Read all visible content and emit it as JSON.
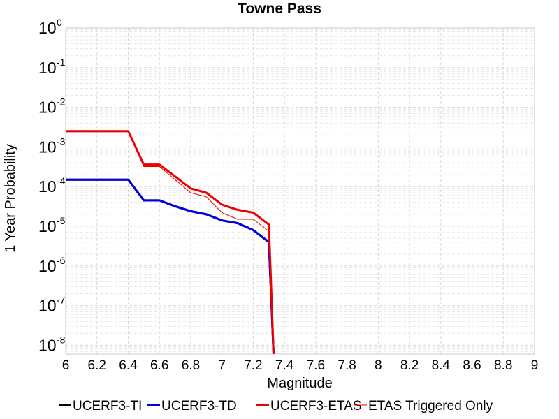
{
  "chart_data": {
    "type": "line",
    "title": "Towne Pass",
    "xlabel": "Magnitude",
    "ylabel": "1 Year Probability",
    "xlim": [
      6,
      9
    ],
    "ylim": [
      6e-09,
      1
    ],
    "yscale": "log",
    "grid": true,
    "legend_placement": "bottom",
    "x_ticks": [
      "6",
      "6.2",
      "6.4",
      "6.6",
      "6.8",
      "7",
      "7.2",
      "7.4",
      "7.6",
      "7.8",
      "8",
      "8.2",
      "8.4",
      "8.6",
      "8.8",
      "9"
    ],
    "y_ticks": [
      {
        "base": "10",
        "exp": "0",
        "value": 1
      },
      {
        "base": "10",
        "exp": "-1",
        "value": 0.1
      },
      {
        "base": "10",
        "exp": "-2",
        "value": 0.01
      },
      {
        "base": "10",
        "exp": "-3",
        "value": 0.001
      },
      {
        "base": "10",
        "exp": "-4",
        "value": 0.0001
      },
      {
        "base": "10",
        "exp": "-5",
        "value": 1e-05
      },
      {
        "base": "10",
        "exp": "-6",
        "value": 1e-06
      },
      {
        "base": "10",
        "exp": "-7",
        "value": 1e-07
      },
      {
        "base": "10",
        "exp": "-8",
        "value": 1e-08
      }
    ],
    "series": [
      {
        "name": "UCERF3-TI",
        "color": "#000000",
        "width": 3,
        "x": [
          6.0,
          6.4,
          6.5,
          6.6,
          6.7,
          6.8,
          6.9,
          7.0,
          7.1,
          7.2,
          7.3,
          7.33
        ],
        "y": [
          0.00015,
          0.00015,
          4.5e-05,
          4.5e-05,
          3.2e-05,
          2.4e-05,
          2e-05,
          1.4e-05,
          1.2e-05,
          8e-06,
          4e-06,
          6e-09
        ]
      },
      {
        "name": "UCERF3-TD",
        "color": "#0000dd",
        "width": 3,
        "x": [
          6.0,
          6.4,
          6.5,
          6.6,
          6.7,
          6.8,
          6.9,
          7.0,
          7.1,
          7.2,
          7.3,
          7.33
        ],
        "y": [
          0.00015,
          0.00015,
          4.5e-05,
          4.5e-05,
          3.2e-05,
          2.4e-05,
          2e-05,
          1.4e-05,
          1.2e-05,
          8e-06,
          4e-06,
          6e-09
        ]
      },
      {
        "name": "UCERF3-ETAS",
        "color": "#ee0000",
        "width": 3,
        "x": [
          6.0,
          6.4,
          6.5,
          6.6,
          6.7,
          6.8,
          6.9,
          7.0,
          7.1,
          7.2,
          7.3,
          7.33
        ],
        "y": [
          0.0025,
          0.0025,
          0.00036,
          0.00036,
          0.00018,
          9e-05,
          7e-05,
          3.5e-05,
          2.6e-05,
          2.2e-05,
          1.1e-05,
          6e-09
        ]
      },
      {
        "name": "ETAS Triggered Only",
        "color": "#ee0000",
        "width": 1,
        "x": [
          6.0,
          6.4,
          6.5,
          6.6,
          6.7,
          6.8,
          6.9,
          7.0,
          7.1,
          7.2,
          7.3,
          7.33
        ],
        "y": [
          0.0024,
          0.0024,
          0.00032,
          0.00032,
          0.00015,
          7e-05,
          5.5e-05,
          2.2e-05,
          1.5e-05,
          1.5e-05,
          7.5e-06,
          6e-09
        ]
      }
    ]
  }
}
